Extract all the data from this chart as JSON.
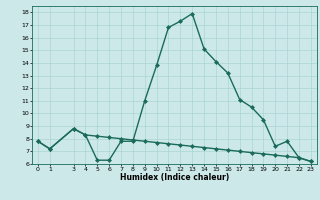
{
  "xlabel": "Humidex (Indice chaleur)",
  "bg_color": "#cce8e8",
  "line_color": "#1a6b5a",
  "line1_x": [
    0,
    1,
    3,
    4,
    5,
    6,
    7,
    8,
    9,
    10,
    11,
    12,
    13,
    14,
    15,
    16,
    17,
    18,
    19,
    20,
    21,
    22,
    23
  ],
  "line1_y": [
    7.8,
    7.2,
    8.8,
    8.3,
    6.3,
    6.3,
    7.8,
    7.8,
    11.0,
    13.8,
    16.8,
    17.3,
    17.9,
    15.1,
    14.1,
    13.2,
    11.1,
    10.5,
    9.5,
    7.4,
    7.8,
    6.5,
    6.2
  ],
  "line2_x": [
    0,
    1,
    3,
    4,
    5,
    6,
    7,
    8,
    9,
    10,
    11,
    12,
    13,
    14,
    15,
    16,
    17,
    18,
    19,
    20,
    21,
    22,
    23
  ],
  "line2_y": [
    7.8,
    7.2,
    8.8,
    8.3,
    8.2,
    8.1,
    8.0,
    7.9,
    7.8,
    7.7,
    7.6,
    7.5,
    7.4,
    7.3,
    7.2,
    7.1,
    7.0,
    6.9,
    6.8,
    6.7,
    6.6,
    6.5,
    6.2
  ],
  "ylim": [
    6,
    18.5
  ],
  "xlim": [
    -0.5,
    23.5
  ],
  "yticks": [
    6,
    7,
    8,
    9,
    10,
    11,
    12,
    13,
    14,
    15,
    16,
    17,
    18
  ],
  "xticks": [
    0,
    1,
    3,
    4,
    5,
    6,
    7,
    8,
    9,
    10,
    11,
    12,
    13,
    14,
    15,
    16,
    17,
    18,
    19,
    20,
    21,
    22,
    23
  ],
  "grid_color": "#aad4d4",
  "marker": "D",
  "markersize": 2.0,
  "linewidth": 1.0
}
